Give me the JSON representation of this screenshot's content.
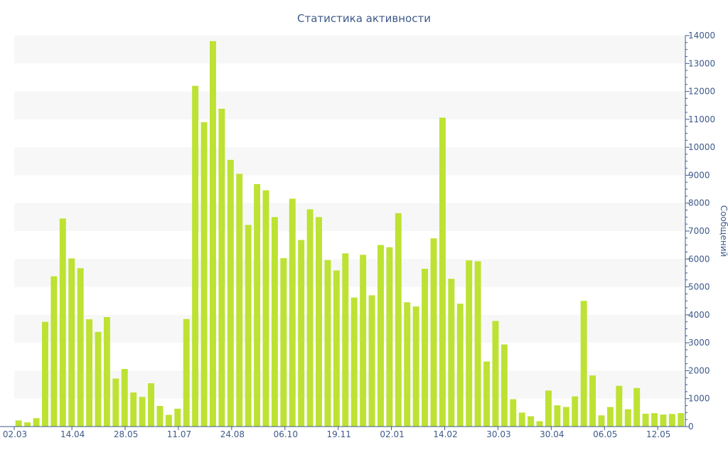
{
  "chart_data": {
    "type": "bar",
    "title": "Статистика активности",
    "xlabel": "",
    "ylabel": "Сообщений",
    "ylim": [
      0,
      14000
    ],
    "yticks": [
      0,
      1000,
      2000,
      3000,
      4000,
      5000,
      6000,
      7000,
      8000,
      9000,
      10000,
      11000,
      12000,
      13000,
      14000
    ],
    "xtick_labels": [
      "02.03",
      "14.04",
      "28.05",
      "11.07",
      "24.08",
      "06.10",
      "19.11",
      "02.01",
      "14.02",
      "30.03",
      "30.04",
      "06.05",
      "12.05"
    ],
    "grid": "alternating horizontal bands",
    "y_axis_position": "right",
    "bar_color": "#bde233",
    "values": [
      220,
      150,
      300,
      3750,
      5380,
      7450,
      6020,
      5670,
      3840,
      3390,
      3920,
      1720,
      2060,
      1220,
      1060,
      1550,
      740,
      420,
      640,
      3850,
      12200,
      10900,
      13800,
      11380,
      9550,
      9050,
      7220,
      8680,
      8460,
      7500,
      6030,
      8160,
      6680,
      7780,
      7500,
      5960,
      5590,
      6200,
      4620,
      6150,
      4700,
      6500,
      6420,
      7640,
      4450,
      4300,
      5650,
      6740,
      11060,
      5290,
      4400,
      5950,
      5920,
      2330,
      3780,
      2940,
      980,
      500,
      370,
      190,
      1290,
      760,
      700,
      1080,
      4500,
      1830,
      400,
      700,
      1460,
      620,
      1380,
      460,
      480,
      430,
      450,
      480
    ]
  }
}
